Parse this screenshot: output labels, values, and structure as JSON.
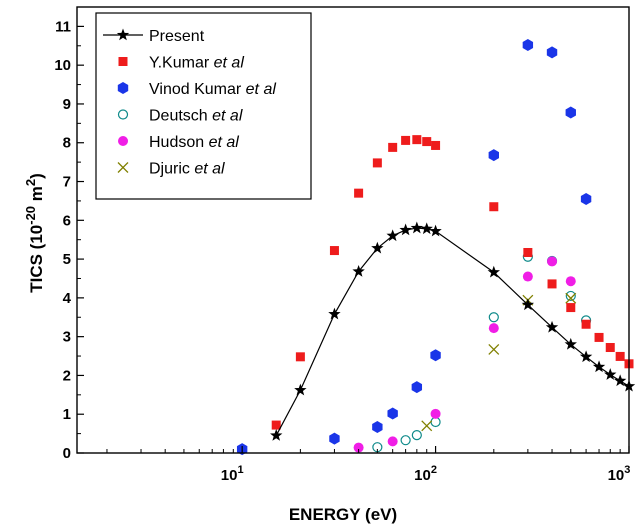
{
  "chart_data": {
    "type": "scatter",
    "xlabel": "ENERGY (eV)",
    "ylabel": "TICS (10",
    "ylabel_exp": "-20",
    "ylabel_unit": " m",
    "ylabel_unit_exp": "2",
    "ylabel_close": ")",
    "x_scale": "log",
    "xlim": [
      1.4,
      1000
    ],
    "ylim": [
      0,
      11.5
    ],
    "x_ticks": [
      {
        "value": 10,
        "base": "10",
        "exp": "1"
      },
      {
        "value": 100,
        "base": "10",
        "exp": "2"
      },
      {
        "value": 1000,
        "base": "10",
        "exp": "3"
      }
    ],
    "y_ticks": [
      0,
      1,
      2,
      3,
      4,
      5,
      6,
      7,
      8,
      9,
      10,
      11
    ],
    "grid": false,
    "legend_position": "top-left",
    "series": [
      {
        "name": "Present",
        "name_suffix": "",
        "marker": "star",
        "line": true,
        "color": "#000000",
        "points": [
          [
            15,
            0.45
          ],
          [
            20,
            1.62
          ],
          [
            30,
            3.58
          ],
          [
            40,
            4.68
          ],
          [
            50,
            5.28
          ],
          [
            60,
            5.6
          ],
          [
            70,
            5.75
          ],
          [
            80,
            5.8
          ],
          [
            90,
            5.78
          ],
          [
            100,
            5.72
          ],
          [
            200,
            4.66
          ],
          [
            300,
            3.82
          ],
          [
            400,
            3.24
          ],
          [
            500,
            2.8
          ],
          [
            600,
            2.48
          ],
          [
            700,
            2.22
          ],
          [
            800,
            2.02
          ],
          [
            900,
            1.86
          ],
          [
            1000,
            1.72
          ]
        ]
      },
      {
        "name": "Y.Kumar ",
        "name_suffix": "et al",
        "marker": "square",
        "line": false,
        "color": "#ee1c1c",
        "points": [
          [
            15,
            0.72
          ],
          [
            20,
            2.48
          ],
          [
            30,
            5.22
          ],
          [
            40,
            6.7
          ],
          [
            50,
            7.48
          ],
          [
            60,
            7.88
          ],
          [
            70,
            8.06
          ],
          [
            80,
            8.08
          ],
          [
            90,
            8.03
          ],
          [
            100,
            7.93
          ],
          [
            200,
            6.35
          ],
          [
            300,
            5.17
          ],
          [
            400,
            4.36
          ],
          [
            500,
            3.75
          ],
          [
            600,
            3.32
          ],
          [
            700,
            2.98
          ],
          [
            800,
            2.72
          ],
          [
            900,
            2.49
          ],
          [
            1000,
            2.3
          ]
        ]
      },
      {
        "name": "Vinod Kumar ",
        "name_suffix": "et al",
        "marker": "hexagon",
        "line": false,
        "color": "#1a35e8",
        "points": [
          [
            10,
            0.1
          ],
          [
            30,
            0.37
          ],
          [
            50,
            0.67
          ],
          [
            60,
            1.02
          ],
          [
            80,
            1.7
          ],
          [
            100,
            2.52
          ],
          [
            200,
            7.68
          ],
          [
            300,
            10.52
          ],
          [
            400,
            10.33
          ],
          [
            500,
            8.78
          ],
          [
            600,
            6.55
          ]
        ]
      },
      {
        "name": "Deutsch ",
        "name_suffix": "et al",
        "marker": "open-circle",
        "line": false,
        "color": "#0e8a8a",
        "points": [
          [
            50,
            0.15
          ],
          [
            70,
            0.33
          ],
          [
            80,
            0.46
          ],
          [
            100,
            0.8
          ],
          [
            200,
            3.5
          ],
          [
            300,
            5.06
          ],
          [
            400,
            4.95
          ],
          [
            500,
            4.05
          ],
          [
            600,
            3.42
          ]
        ]
      },
      {
        "name": "Hudson ",
        "name_suffix": "et al",
        "marker": "circle",
        "line": false,
        "color": "#f01ee6",
        "points": [
          [
            40,
            0.14
          ],
          [
            60,
            0.3
          ],
          [
            100,
            1.01
          ],
          [
            200,
            3.22
          ],
          [
            300,
            4.55
          ],
          [
            400,
            4.94
          ],
          [
            500,
            4.43
          ]
        ]
      },
      {
        "name": "Djuric ",
        "name_suffix": "et al",
        "marker": "cross",
        "line": false,
        "color": "#808000",
        "points": [
          [
            90,
            0.7
          ],
          [
            200,
            2.67
          ],
          [
            300,
            3.94
          ],
          [
            500,
            3.99
          ]
        ]
      }
    ]
  }
}
